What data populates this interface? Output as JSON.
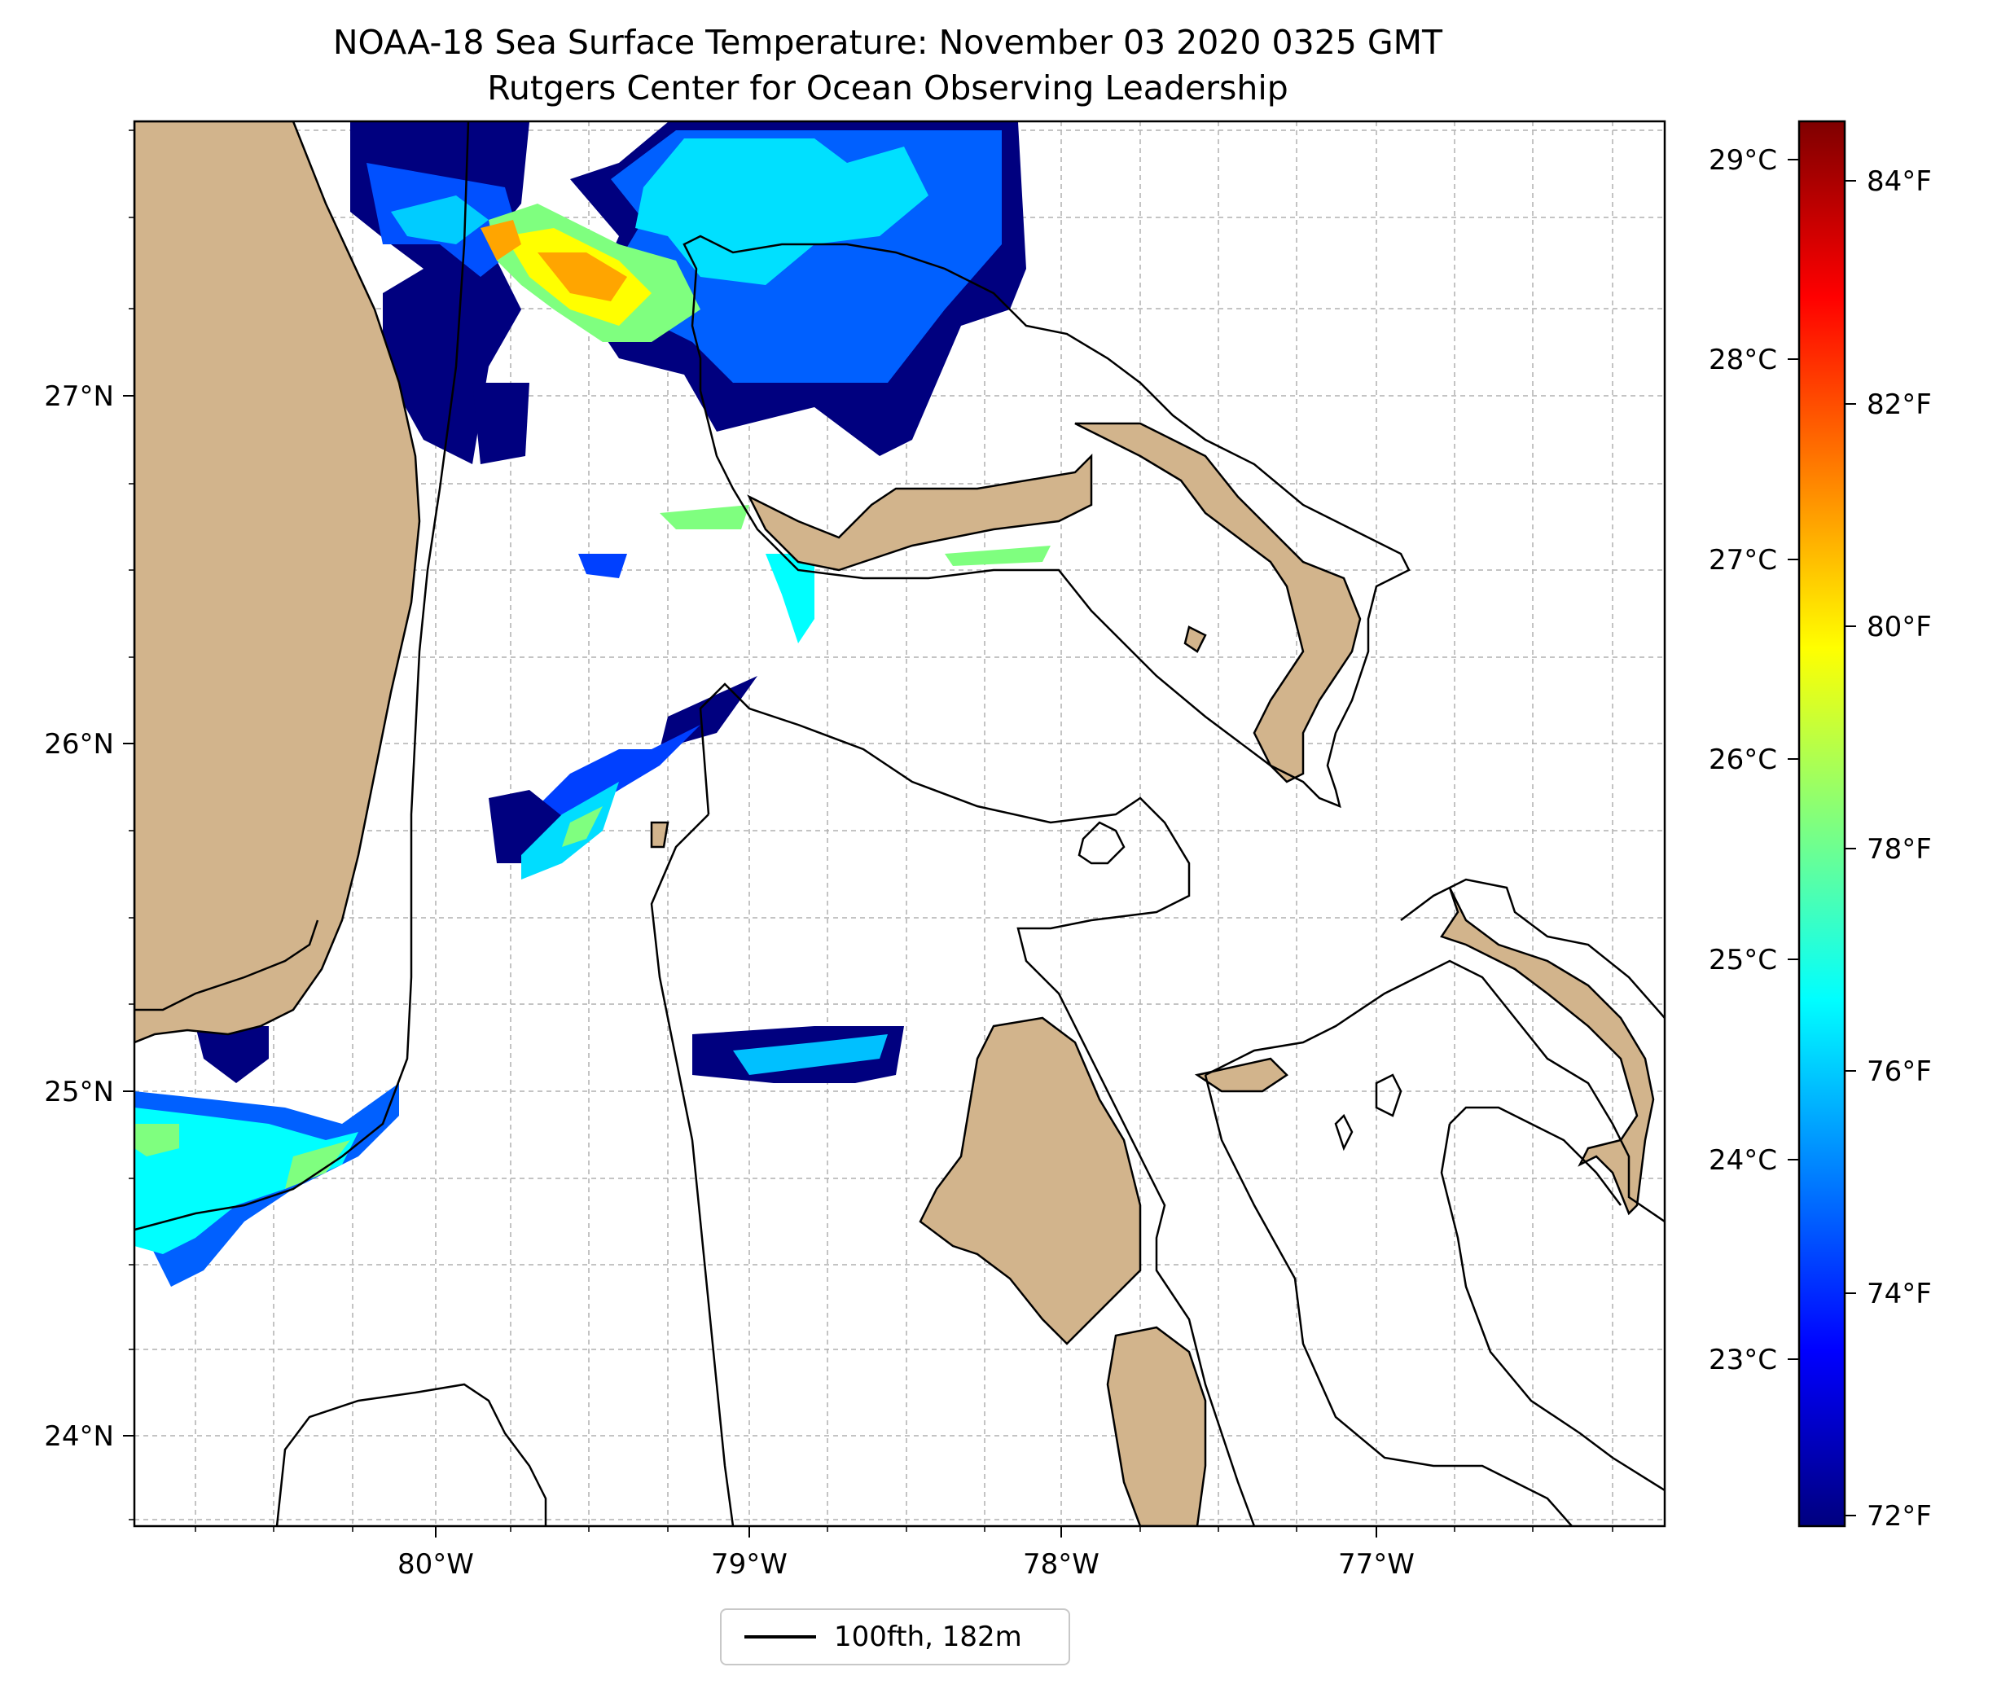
{
  "title": {
    "line1": "NOAA-18 Sea Surface Temperature: November 03 2020 0325 GMT",
    "line2": "Rutgers Center for Ocean Observing Leadership"
  },
  "map": {
    "lat_labels": [
      "27°N",
      "26°N",
      "25°N",
      "24°N"
    ],
    "lon_labels": [
      "80°W",
      "79°W",
      "78°W",
      "77°W"
    ],
    "gridlines": true,
    "land_color": "#d2b48c",
    "contour_color": "#000000"
  },
  "colorbar": {
    "colormap": "jet",
    "celsius_labels": [
      "29°C",
      "28°C",
      "27°C",
      "26°C",
      "25°C",
      "24°C",
      "23°C"
    ],
    "fahrenheit_labels": [
      "84°F",
      "82°F",
      "80°F",
      "78°F",
      "76°F",
      "74°F",
      "72°F"
    ],
    "colors": [
      "#00007f",
      "#0000ff",
      "#007fff",
      "#00ffff",
      "#7fff7f",
      "#ffff00",
      "#ff7f00",
      "#ff0000",
      "#7f0000"
    ]
  },
  "legend": {
    "label": "100fth, 182m"
  }
}
